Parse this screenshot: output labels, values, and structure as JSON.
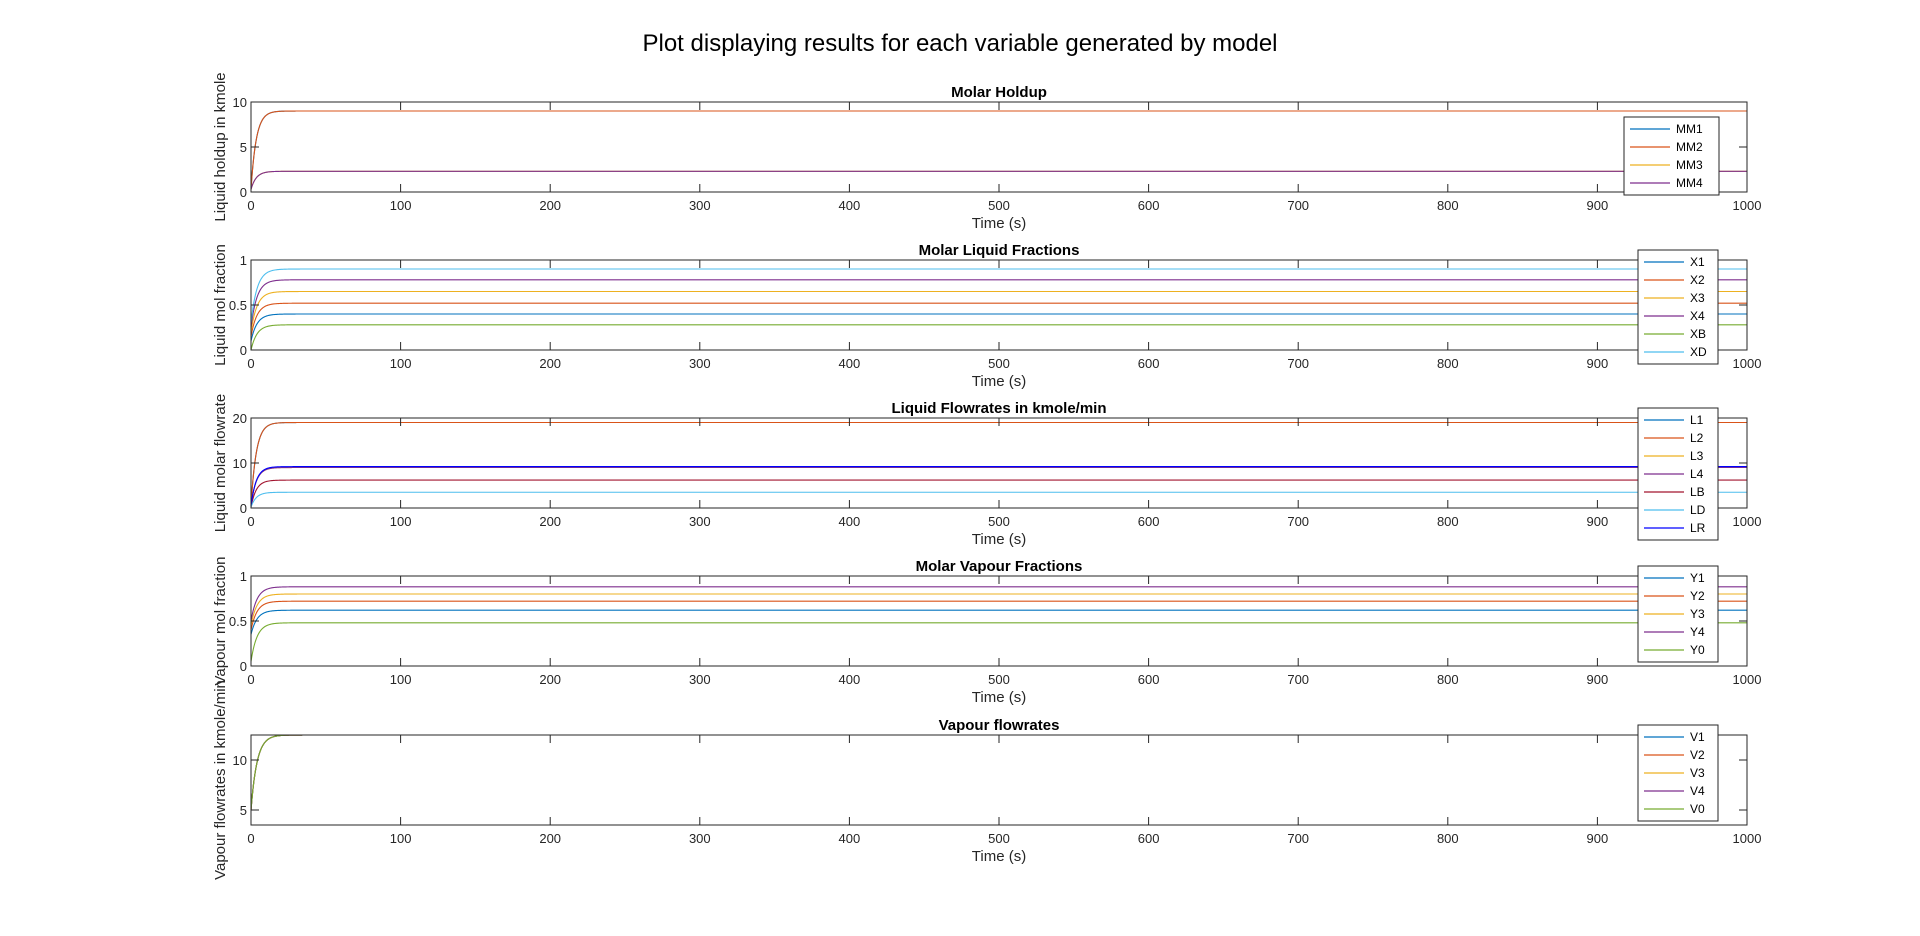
{
  "figure": {
    "title": "Plot displaying results for each variable generated by model"
  },
  "chart_data": [
    {
      "type": "line",
      "title": "Molar Holdup",
      "xlabel": "Time (s)",
      "ylabel": "Liquid holdup in kmole",
      "xlim": [
        0,
        1000
      ],
      "ylim": [
        0,
        10
      ],
      "xticks": [
        0,
        100,
        200,
        300,
        400,
        500,
        600,
        700,
        800,
        900,
        1000
      ],
      "yticks": [
        0,
        5,
        10
      ],
      "legend_position": "right",
      "grid": false,
      "series": [
        {
          "name": "MM1",
          "color": "#0072BD",
          "start": 0.3,
          "final": 9.0,
          "tau": 3.5
        },
        {
          "name": "MM2",
          "color": "#D95319",
          "start": 0.3,
          "final": 9.0,
          "tau": 3.5
        },
        {
          "name": "MM3",
          "color": "#EDB120",
          "start": 0.3,
          "final": 2.3,
          "tau": 3.5
        },
        {
          "name": "MM4",
          "color": "#7E2F8E",
          "start": 0.3,
          "final": 2.3,
          "tau": 3.5
        }
      ]
    },
    {
      "type": "line",
      "title": "Molar Liquid Fractions",
      "xlabel": "Time (s)",
      "ylabel": "Liquid mol fraction",
      "xlim": [
        0,
        1000
      ],
      "ylim": [
        0,
        1
      ],
      "xticks": [
        0,
        100,
        200,
        300,
        400,
        500,
        600,
        700,
        800,
        900,
        1000
      ],
      "yticks": [
        0,
        0.5,
        1
      ],
      "legend_position": "right",
      "grid": false,
      "series": [
        {
          "name": "X1",
          "color": "#0072BD",
          "start": 0.1,
          "final": 0.4,
          "tau": 4
        },
        {
          "name": "X2",
          "color": "#D95319",
          "start": 0.15,
          "final": 0.52,
          "tau": 4
        },
        {
          "name": "X3",
          "color": "#EDB120",
          "start": 0.2,
          "final": 0.65,
          "tau": 4
        },
        {
          "name": "X4",
          "color": "#7E2F8E",
          "start": 0.25,
          "final": 0.78,
          "tau": 4
        },
        {
          "name": "XB",
          "color": "#77AC30",
          "start": 0.0,
          "final": 0.28,
          "tau": 4
        },
        {
          "name": "XD",
          "color": "#4DBEEE",
          "start": 0.3,
          "final": 0.9,
          "tau": 4
        }
      ]
    },
    {
      "type": "line",
      "title": "Liquid Flowrates in kmole/min",
      "xlabel": "Time (s)",
      "ylabel": "Liquid molar flowrate",
      "xlim": [
        0,
        1000
      ],
      "ylim": [
        0,
        20
      ],
      "xticks": [
        0,
        100,
        200,
        300,
        400,
        500,
        600,
        700,
        800,
        900,
        1000
      ],
      "yticks": [
        0,
        10,
        20
      ],
      "legend_position": "right",
      "grid": false,
      "series": [
        {
          "name": "L1",
          "color": "#0072BD",
          "start": 0.5,
          "final": 19.0,
          "tau": 3.5
        },
        {
          "name": "L2",
          "color": "#D95319",
          "start": 0.5,
          "final": 19.0,
          "tau": 3.5
        },
        {
          "name": "L3",
          "color": "#EDB120",
          "start": 0.5,
          "final": 9.0,
          "tau": 3.5
        },
        {
          "name": "L4",
          "color": "#7E2F8E",
          "start": 0.5,
          "final": 9.0,
          "tau": 3.5
        },
        {
          "name": "LB",
          "color": "#A2142F",
          "start": 0.2,
          "final": 6.2,
          "tau": 3.5
        },
        {
          "name": "LD",
          "color": "#4DBEEE",
          "start": 0.2,
          "final": 3.5,
          "tau": 3.5
        },
        {
          "name": "LR",
          "color": "#0000FF",
          "start": 0.5,
          "final": 9.2,
          "tau": 3.5
        }
      ]
    },
    {
      "type": "line",
      "title": "Molar Vapour Fractions",
      "xlabel": "Time (s)",
      "ylabel": "Vapour mol fraction",
      "xlim": [
        0,
        1000
      ],
      "ylim": [
        0,
        1
      ],
      "xticks": [
        0,
        100,
        200,
        300,
        400,
        500,
        600,
        700,
        800,
        900,
        1000
      ],
      "yticks": [
        0,
        0.5,
        1
      ],
      "legend_position": "right",
      "grid": false,
      "series": [
        {
          "name": "Y1",
          "color": "#0072BD",
          "start": 0.35,
          "final": 0.62,
          "tau": 4
        },
        {
          "name": "Y2",
          "color": "#D95319",
          "start": 0.4,
          "final": 0.72,
          "tau": 4
        },
        {
          "name": "Y3",
          "color": "#EDB120",
          "start": 0.45,
          "final": 0.8,
          "tau": 4
        },
        {
          "name": "Y4",
          "color": "#7E2F8E",
          "start": 0.5,
          "final": 0.88,
          "tau": 4
        },
        {
          "name": "Y0",
          "color": "#77AC30",
          "start": 0.05,
          "final": 0.48,
          "tau": 4
        }
      ]
    },
    {
      "type": "line",
      "title": "Vapour flowrates",
      "xlabel": "Time (s)",
      "ylabel": "Vapour flowrates in kmole/min",
      "xlim": [
        0,
        1000
      ],
      "ylim": [
        3.5,
        12.5
      ],
      "xticks": [
        0,
        100,
        200,
        300,
        400,
        500,
        600,
        700,
        800,
        900,
        1000
      ],
      "yticks": [
        5,
        10
      ],
      "legend_position": "right",
      "grid": false,
      "series": [
        {
          "name": "V1",
          "color": "#0072BD",
          "start": 5.0,
          "final": 12.5,
          "tau": 4
        },
        {
          "name": "V2",
          "color": "#D95319",
          "start": 5.0,
          "final": 12.5,
          "tau": 4
        },
        {
          "name": "V3",
          "color": "#EDB120",
          "start": 5.0,
          "final": 12.5,
          "tau": 4
        },
        {
          "name": "V4",
          "color": "#7E2F8E",
          "start": 5.0,
          "final": 12.5,
          "tau": 4
        },
        {
          "name": "V0",
          "color": "#77AC30",
          "start": 5.0,
          "final": 12.5,
          "tau": 4
        }
      ]
    }
  ]
}
